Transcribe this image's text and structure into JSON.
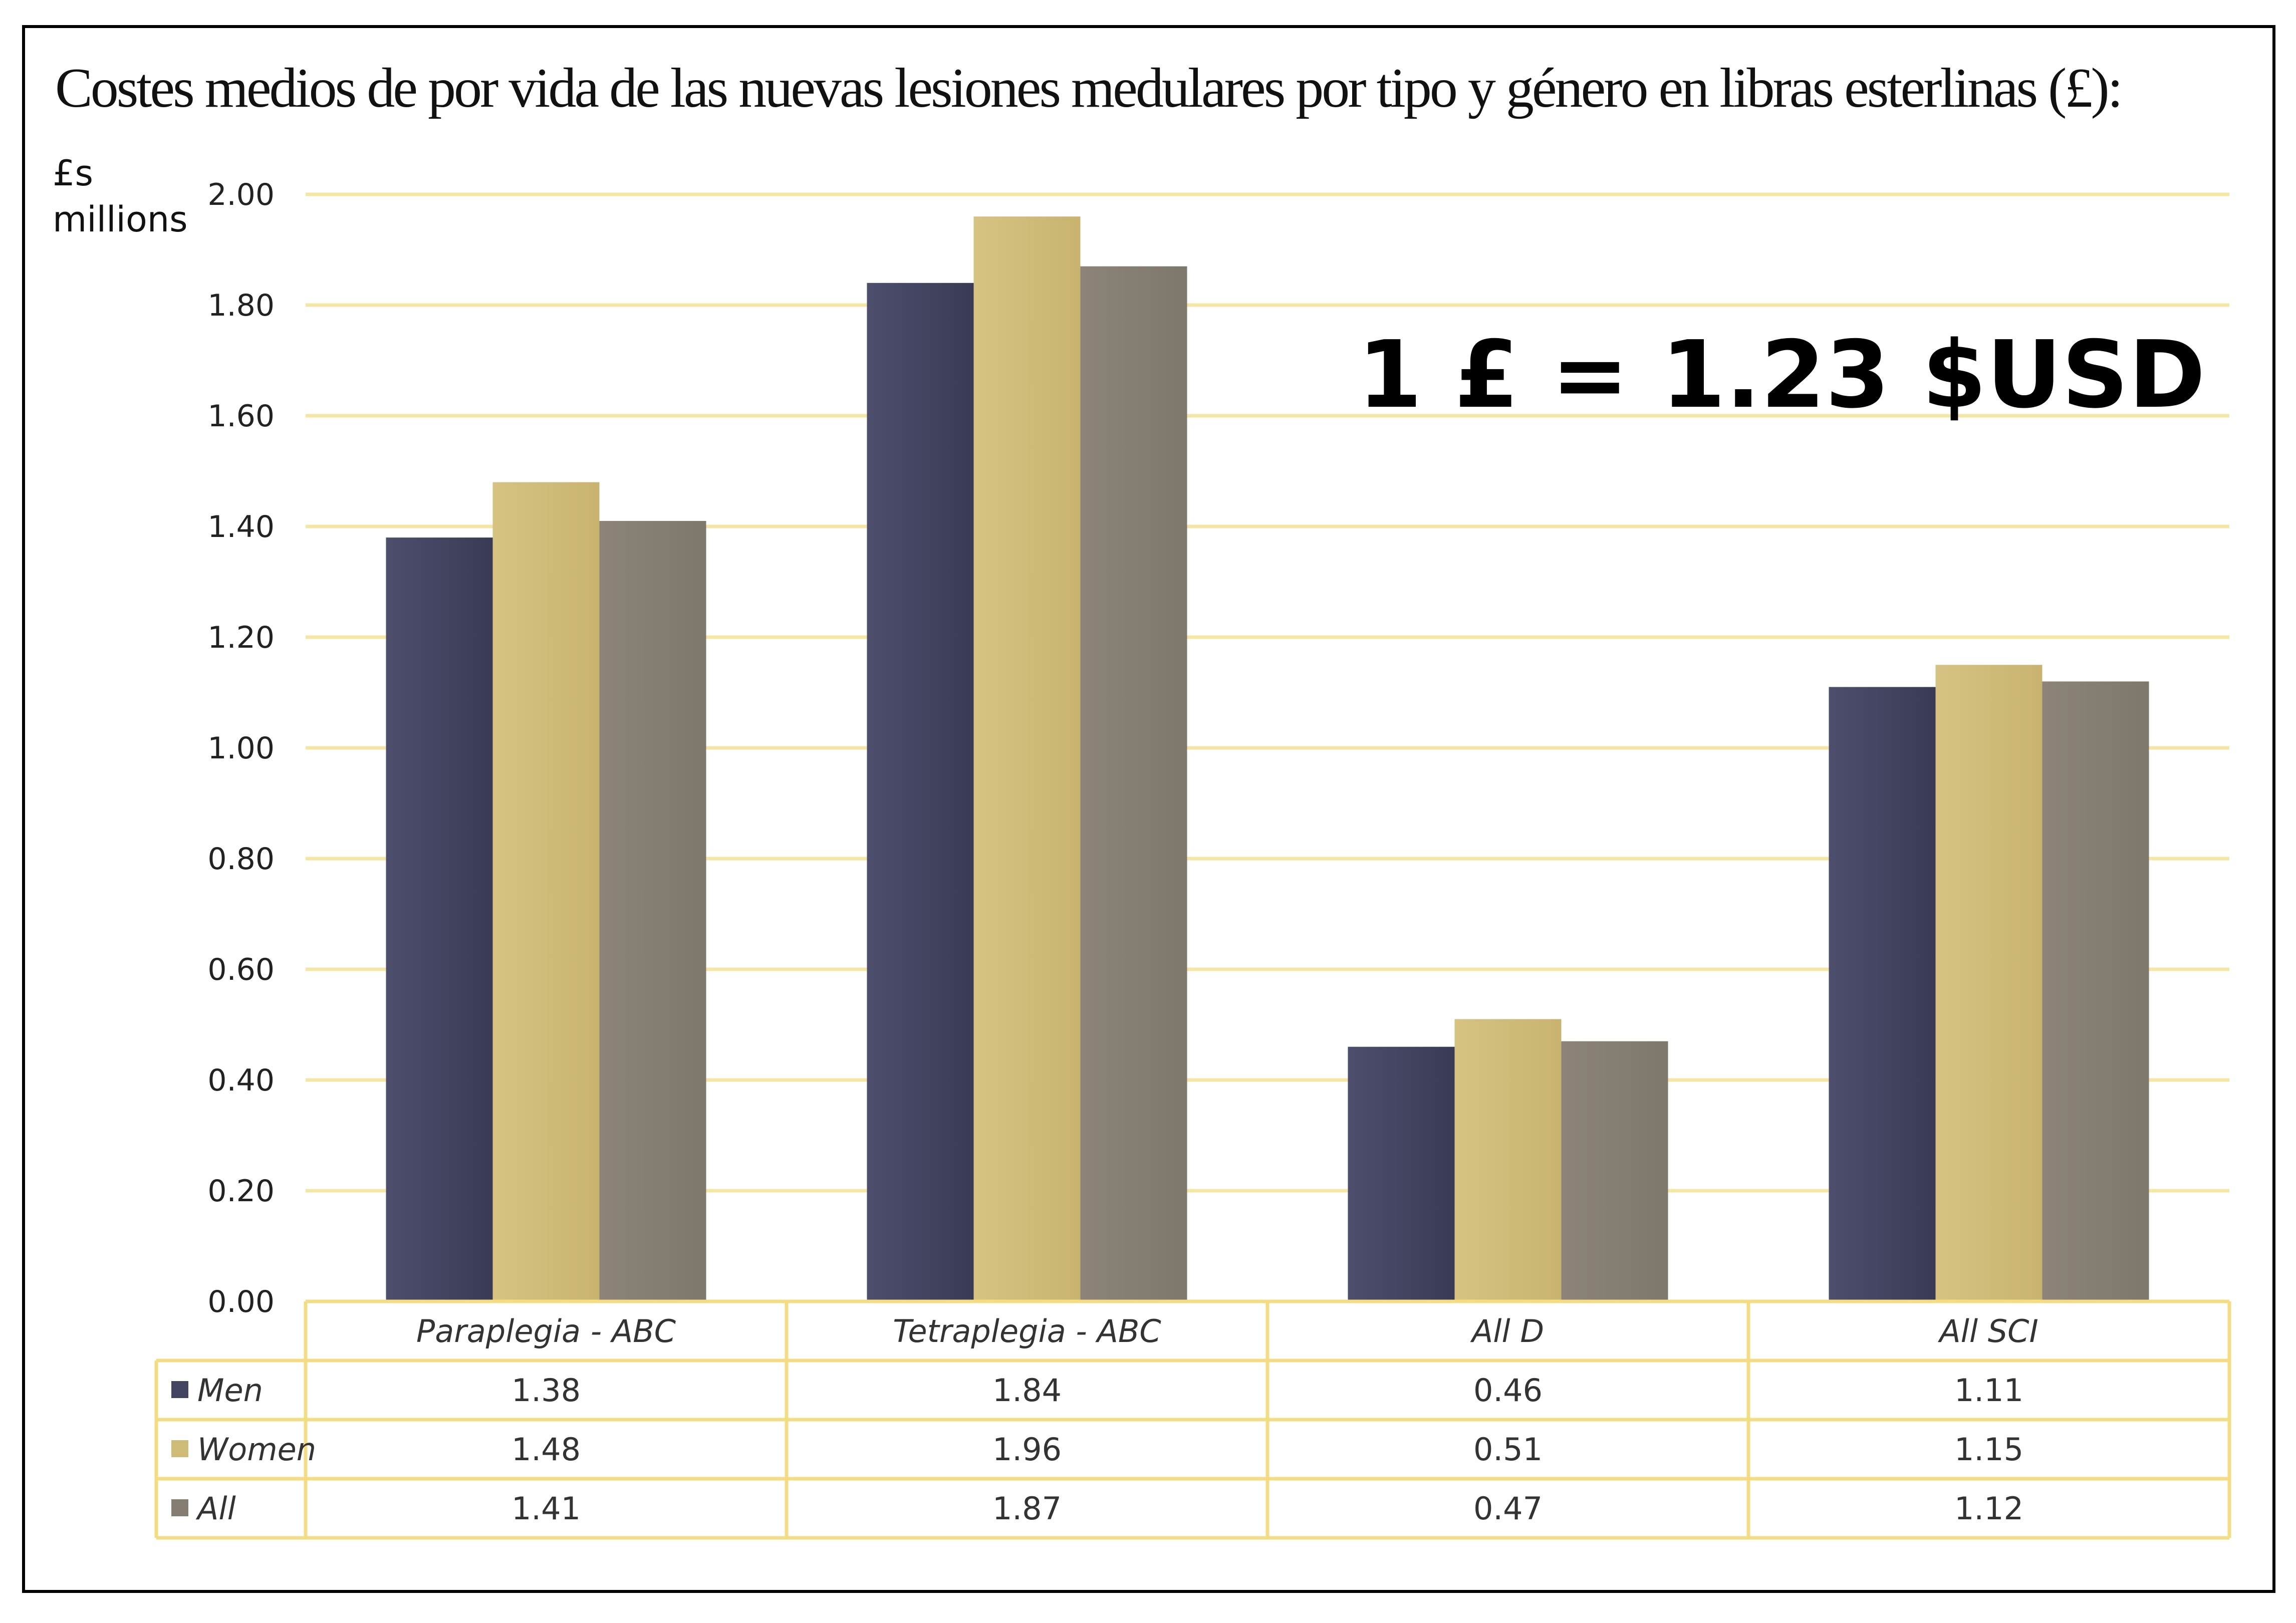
{
  "title": "Costes medios de por vida de las nuevas lesiones medulares por tipo y género en libras esterlinas (£):",
  "y_axis_label": [
    "£s",
    "millions"
  ],
  "annotation": "1 £ = 1.23 $USD",
  "colors": {
    "men": "#414360",
    "women": "#cfbb78",
    "all": "#857d72",
    "grid": "#f6e6a4",
    "table_border": "#f3dc82"
  },
  "chart_data": {
    "type": "bar",
    "title": "Costes medios de por vida de las nuevas lesiones medulares por tipo y género en libras esterlinas (£):",
    "xlabel": "",
    "ylabel": "£s millions",
    "ylim": [
      0,
      2.0
    ],
    "yticks": [
      "0.00",
      "0.20",
      "0.40",
      "0.60",
      "0.80",
      "1.00",
      "1.20",
      "1.40",
      "1.60",
      "1.80",
      "2.00"
    ],
    "grid": true,
    "legend": "data-table",
    "categories": [
      "Paraplegia - ABC",
      "Tetraplegia - ABC",
      "All D",
      "All SCI"
    ],
    "series": [
      {
        "name": "Men",
        "values": [
          1.38,
          1.84,
          0.46,
          1.11
        ],
        "labels": [
          "1.38",
          "1.84",
          "0.46",
          "1.11"
        ]
      },
      {
        "name": "Women",
        "values": [
          1.48,
          1.96,
          0.51,
          1.15
        ],
        "labels": [
          "1.48",
          "1.96",
          "0.51",
          "1.15"
        ]
      },
      {
        "name": "All",
        "values": [
          1.41,
          1.87,
          0.47,
          1.12
        ],
        "labels": [
          "1.41",
          "1.87",
          "0.47",
          "1.12"
        ]
      }
    ]
  }
}
